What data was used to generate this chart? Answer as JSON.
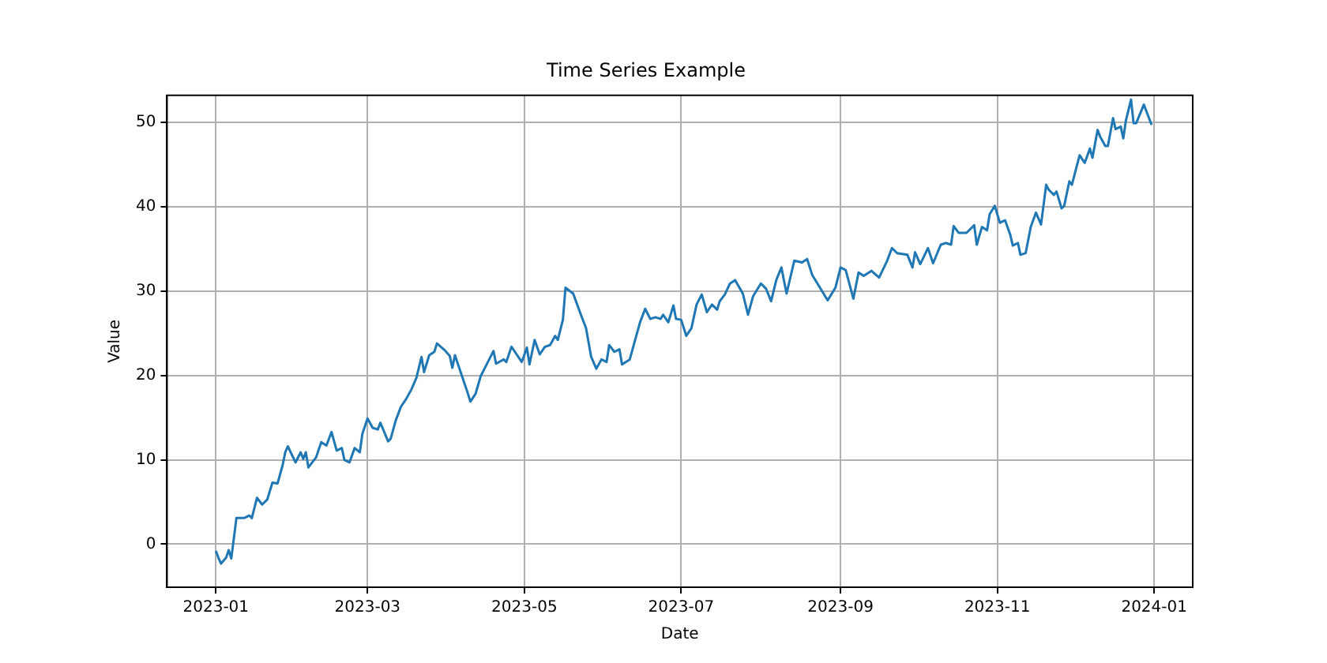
{
  "chart_data": {
    "type": "line",
    "title": "Time Series Example",
    "xlabel": "Date",
    "ylabel": "Value",
    "x": [
      "2023-01-01",
      "2023-01-02",
      "2023-01-03",
      "2023-01-05",
      "2023-01-06",
      "2023-01-07",
      "2023-01-09",
      "2023-01-12",
      "2023-01-14",
      "2023-01-15",
      "2023-01-17",
      "2023-01-19",
      "2023-01-21",
      "2023-01-23",
      "2023-01-25",
      "2023-01-27",
      "2023-01-28",
      "2023-01-29",
      "2023-02-01",
      "2023-02-03",
      "2023-02-04",
      "2023-02-05",
      "2023-02-06",
      "2023-02-09",
      "2023-02-11",
      "2023-02-13",
      "2023-02-15",
      "2023-02-17",
      "2023-02-19",
      "2023-02-20",
      "2023-02-22",
      "2023-02-24",
      "2023-02-26",
      "2023-02-27",
      "2023-03-01",
      "2023-03-03",
      "2023-03-05",
      "2023-03-06",
      "2023-03-09",
      "2023-03-10",
      "2023-03-12",
      "2023-03-14",
      "2023-03-16",
      "2023-03-18",
      "2023-03-20",
      "2023-03-22",
      "2023-03-23",
      "2023-03-25",
      "2023-03-27",
      "2023-03-28",
      "2023-03-31",
      "2023-04-02",
      "2023-04-03",
      "2023-04-04",
      "2023-04-07",
      "2023-04-09",
      "2023-04-10",
      "2023-04-12",
      "2023-04-14",
      "2023-04-16",
      "2023-04-19",
      "2023-04-20",
      "2023-04-23",
      "2023-04-24",
      "2023-04-26",
      "2023-04-28",
      "2023-04-30",
      "2023-05-02",
      "2023-05-03",
      "2023-05-05",
      "2023-05-07",
      "2023-05-09",
      "2023-05-11",
      "2023-05-13",
      "2023-05-14",
      "2023-05-16",
      "2023-05-17",
      "2023-05-20",
      "2023-05-23",
      "2023-05-25",
      "2023-05-27",
      "2023-05-29",
      "2023-05-31",
      "2023-06-02",
      "2023-06-03",
      "2023-06-05",
      "2023-06-07",
      "2023-06-08",
      "2023-06-11",
      "2023-06-13",
      "2023-06-15",
      "2023-06-17",
      "2023-06-19",
      "2023-06-21",
      "2023-06-23",
      "2023-06-24",
      "2023-06-26",
      "2023-06-28",
      "2023-06-29",
      "2023-07-01",
      "2023-07-03",
      "2023-07-05",
      "2023-07-07",
      "2023-07-09",
      "2023-07-11",
      "2023-07-13",
      "2023-07-15",
      "2023-07-16",
      "2023-07-18",
      "2023-07-20",
      "2023-07-22",
      "2023-07-25",
      "2023-07-27",
      "2023-07-29",
      "2023-08-01",
      "2023-08-03",
      "2023-08-05",
      "2023-08-07",
      "2023-08-09",
      "2023-08-11",
      "2023-08-14",
      "2023-08-17",
      "2023-08-19",
      "2023-08-21",
      "2023-08-24",
      "2023-08-27",
      "2023-08-30",
      "2023-09-01",
      "2023-09-03",
      "2023-09-06",
      "2023-09-08",
      "2023-09-10",
      "2023-09-13",
      "2023-09-16",
      "2023-09-19",
      "2023-09-21",
      "2023-09-23",
      "2023-09-27",
      "2023-09-29",
      "2023-09-30",
      "2023-10-02",
      "2023-10-05",
      "2023-10-07",
      "2023-10-10",
      "2023-10-12",
      "2023-10-14",
      "2023-10-15",
      "2023-10-17",
      "2023-10-20",
      "2023-10-23",
      "2023-10-24",
      "2023-10-26",
      "2023-10-28",
      "2023-10-29",
      "2023-10-31",
      "2023-11-02",
      "2023-11-04",
      "2023-11-06",
      "2023-11-07",
      "2023-11-09",
      "2023-11-10",
      "2023-11-12",
      "2023-11-14",
      "2023-11-16",
      "2023-11-18",
      "2023-11-20",
      "2023-11-21",
      "2023-11-23",
      "2023-11-24",
      "2023-11-26",
      "2023-11-27",
      "2023-11-29",
      "2023-11-30",
      "2023-12-03",
      "2023-12-05",
      "2023-12-07",
      "2023-12-08",
      "2023-12-10",
      "2023-12-11",
      "2023-12-13",
      "2023-12-14",
      "2023-12-16",
      "2023-12-17",
      "2023-12-19",
      "2023-12-20",
      "2023-12-21",
      "2023-12-23",
      "2023-12-24",
      "2023-12-25",
      "2023-12-28",
      "2023-12-31"
    ],
    "series": [
      {
        "color": "#1f77b4",
        "values": [
          -0.8,
          -1.6,
          -2.3,
          -1.6,
          -0.7,
          -1.7,
          3.1,
          3.1,
          3.4,
          3.1,
          5.5,
          4.7,
          5.3,
          7.3,
          7.2,
          9.4,
          10.9,
          11.6,
          9.7,
          10.9,
          10.1,
          10.9,
          9.1,
          10.3,
          12.1,
          11.7,
          13.3,
          11.1,
          11.4,
          10,
          9.7,
          11.4,
          10.9,
          13.1,
          14.9,
          13.8,
          13.6,
          14.4,
          12.2,
          12.5,
          14.7,
          16.3,
          17.2,
          18.3,
          19.7,
          22.2,
          20.4,
          22.4,
          22.8,
          23.8,
          23,
          22.3,
          20.9,
          22.4,
          19.7,
          17.9,
          16.9,
          17.8,
          19.9,
          21.1,
          22.9,
          21.4,
          21.9,
          21.6,
          23.4,
          22.5,
          21.6,
          23.3,
          21.3,
          24.2,
          22.5,
          23.4,
          23.6,
          24.7,
          24.2,
          26.6,
          30.4,
          29.7,
          27.2,
          25.6,
          22.2,
          20.8,
          21.9,
          21.6,
          23.6,
          22.8,
          23.1,
          21.3,
          21.9,
          24.1,
          26.3,
          27.9,
          26.7,
          26.9,
          26.7,
          27.2,
          26.3,
          28.3,
          26.7,
          26.6,
          24.7,
          25.6,
          28.4,
          29.6,
          27.5,
          28.4,
          27.8,
          28.8,
          29.6,
          30.9,
          31.3,
          29.7,
          27.2,
          29.4,
          30.9,
          30.3,
          28.8,
          31.3,
          32.8,
          29.7,
          33.6,
          33.4,
          33.8,
          31.9,
          30.4,
          28.9,
          30.4,
          32.8,
          32.5,
          29.1,
          32.2,
          31.8,
          32.4,
          31.6,
          33.5,
          35.1,
          34.5,
          34.3,
          32.8,
          34.6,
          33.2,
          35.1,
          33.3,
          35.5,
          35.7,
          35.5,
          37.7,
          36.9,
          36.9,
          37.8,
          35.5,
          37.6,
          37.2,
          39.1,
          40.1,
          38.1,
          38.4,
          36.7,
          35.4,
          35.7,
          34.3,
          34.5,
          37.6,
          39.3,
          37.9,
          42.6,
          42,
          41.4,
          41.8,
          39.8,
          40.1,
          43,
          42.6,
          46.1,
          45.2,
          46.9,
          45.8,
          49.1,
          48.3,
          47.2,
          47.2,
          50.5,
          49.2,
          49.5,
          48.1,
          50.2,
          52.7,
          49.9,
          49.9,
          52.1,
          49.7
        ]
      }
    ],
    "xlim": [
      "2022-12-13",
      "2024-01-16"
    ],
    "xticks": [
      {
        "value": "2023-01-01",
        "label": "2023-01"
      },
      {
        "value": "2023-03-01",
        "label": "2023-03"
      },
      {
        "value": "2023-05-01",
        "label": "2023-05"
      },
      {
        "value": "2023-07-01",
        "label": "2023-07"
      },
      {
        "value": "2023-09-01",
        "label": "2023-09"
      },
      {
        "value": "2023-11-01",
        "label": "2023-11"
      },
      {
        "value": "2024-01-01",
        "label": "2024-01"
      }
    ],
    "ylim": [
      -5.1,
      53.2
    ],
    "yticks": [
      0,
      10,
      20,
      30,
      40,
      50
    ],
    "grid": true,
    "legend": false,
    "marker": "none",
    "line_style": "solid"
  }
}
